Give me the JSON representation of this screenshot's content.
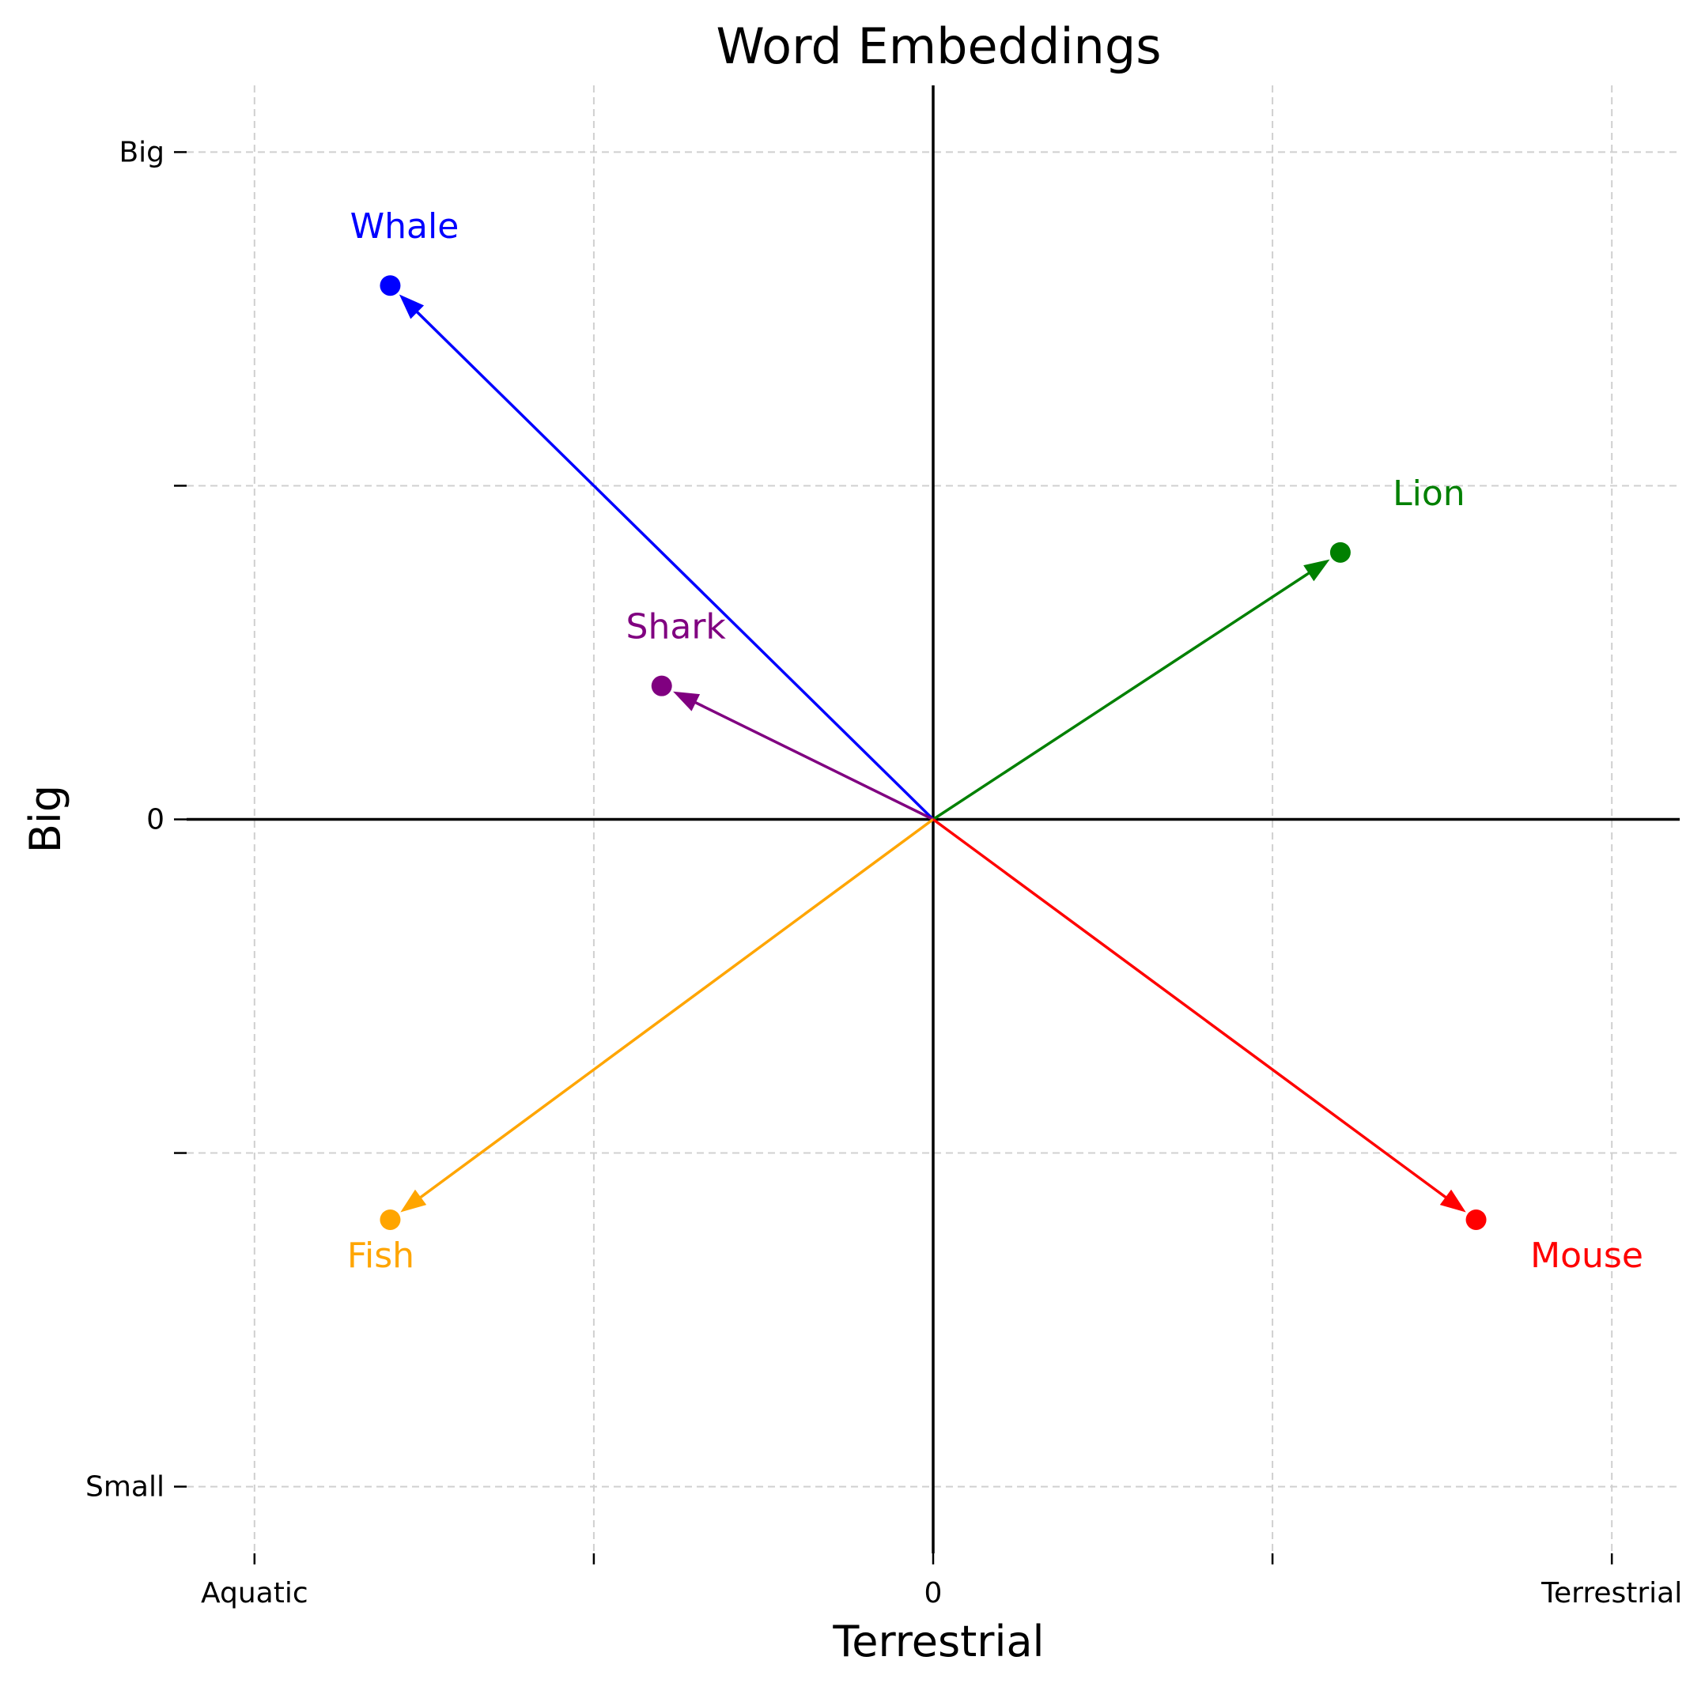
{
  "chart_data": {
    "type": "vector",
    "title": "Word Embeddings",
    "xlabel": "Terrestrial",
    "ylabel": "Big",
    "xlim": [
      -1.1,
      1.1
    ],
    "ylim": [
      -1.1,
      1.1
    ],
    "grid": true,
    "x_ticks": [
      {
        "value": -1,
        "label": "Aquatic"
      },
      {
        "value": -0.5,
        "label": ""
      },
      {
        "value": 0,
        "label": "0"
      },
      {
        "value": 0.5,
        "label": ""
      },
      {
        "value": 1,
        "label": "Terrestrial"
      }
    ],
    "y_ticks": [
      {
        "value": -1,
        "label": "Small"
      },
      {
        "value": -0.5,
        "label": ""
      },
      {
        "value": 0,
        "label": "0"
      },
      {
        "value": 0.5,
        "label": ""
      },
      {
        "value": 1,
        "label": "Big"
      }
    ],
    "vectors": [
      {
        "name": "Whale",
        "x": -0.8,
        "y": 0.8,
        "color": "#0000ff",
        "label_pos": "above"
      },
      {
        "name": "Lion",
        "x": 0.6,
        "y": 0.4,
        "color": "#008000",
        "label_pos": "above-right"
      },
      {
        "name": "Shark",
        "x": -0.4,
        "y": 0.2,
        "color": "#800080",
        "label_pos": "above"
      },
      {
        "name": "Fish",
        "x": -0.8,
        "y": -0.6,
        "color": "#ffa500",
        "label_pos": "below"
      },
      {
        "name": "Mouse",
        "x": 0.8,
        "y": -0.6,
        "color": "#ff0000",
        "label_pos": "below-right"
      }
    ]
  }
}
